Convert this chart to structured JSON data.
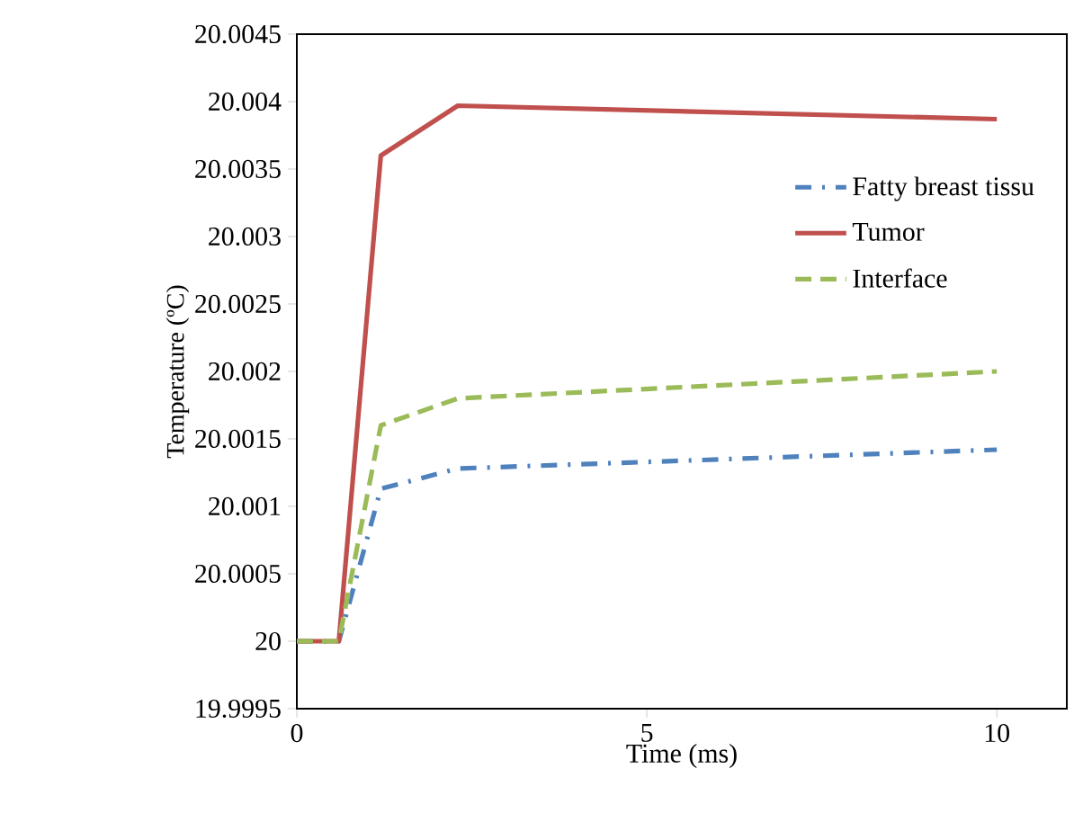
{
  "chart_data": {
    "type": "line",
    "xlabel": "Time (ms)",
    "ylabel": "Temperature (ºC)",
    "x": [
      0,
      0.6,
      1.2,
      2.3,
      10
    ],
    "series": [
      {
        "name": "Fatty breast tissu",
        "color": "#4f81bd",
        "line_style": "dashdot",
        "values": [
          20,
          20,
          20.00113,
          20.00128,
          20.00142
        ]
      },
      {
        "name": "Tumor",
        "color": "#c0504d",
        "line_style": "solid",
        "values": [
          20,
          20,
          20.0036,
          20.00397,
          20.00387
        ]
      },
      {
        "name": "Interface",
        "color": "#9bbb59",
        "line_style": "dashed",
        "values": [
          20,
          20,
          20.0016,
          20.0018,
          20.002
        ]
      }
    ],
    "xlim": [
      0,
      11
    ],
    "ylim": [
      19.9995,
      20.0045
    ],
    "xticks": [
      0,
      5,
      10
    ],
    "yticks": [
      19.9995,
      20,
      20.0005,
      20.001,
      20.0015,
      20.002,
      20.0025,
      20.003,
      20.0035,
      20.004,
      20.0045
    ],
    "grid": false,
    "legend": "right",
    "marker": "none"
  }
}
